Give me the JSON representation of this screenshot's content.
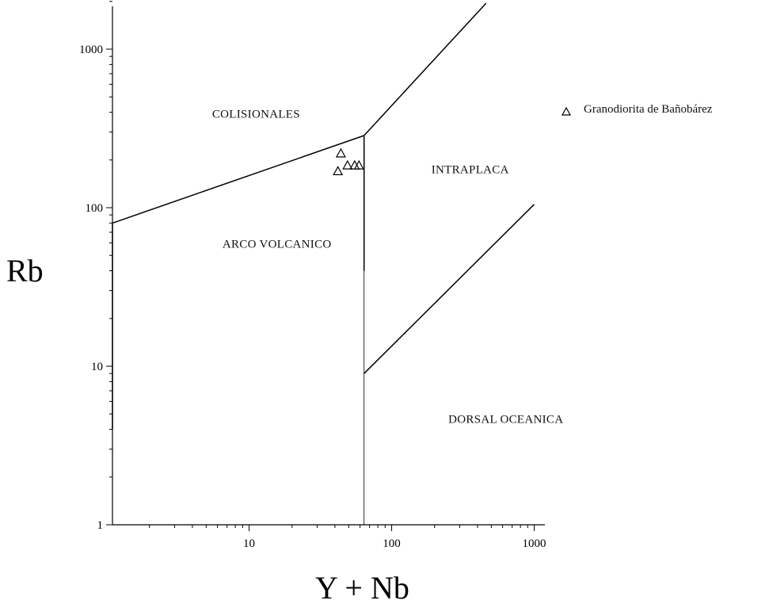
{
  "chart_data": {
    "type": "scatter",
    "xlabel": "Y + Nb",
    "ylabel": "Rb",
    "x_scale": "log",
    "y_scale": "log",
    "xlim": [
      1.1,
      1200
    ],
    "ylim": [
      1,
      2200
    ],
    "x_ticks": [
      {
        "value": 10,
        "label": "10"
      },
      {
        "value": 100,
        "label": "100"
      },
      {
        "value": 1000,
        "label": "1000"
      }
    ],
    "y_ticks": [
      {
        "value": 1,
        "label": "1"
      },
      {
        "value": 10,
        "label": "10"
      },
      {
        "value": 100,
        "label": "100"
      },
      {
        "value": 1000,
        "label": "1000"
      }
    ],
    "fields": [
      {
        "label": "COLISIONALES",
        "x": 5.5,
        "y": 370
      },
      {
        "label": "INTRAPLACA",
        "x": 190,
        "y": 165
      },
      {
        "label": "ARCO VOLCANICO",
        "x": 6.5,
        "y": 56
      },
      {
        "label": "DORSAL OCEANICA",
        "x": 250,
        "y": 4.4
      }
    ],
    "boundaries": [
      {
        "name": "colisionales-arco",
        "points": [
          [
            1.1,
            80
          ],
          [
            64,
            285
          ]
        ],
        "style": "thick"
      },
      {
        "name": "colisionales-intraplaca",
        "points": [
          [
            64,
            285
          ],
          [
            460,
            1950
          ]
        ],
        "style": "thick"
      },
      {
        "name": "intraplaca-arco-upper",
        "points": [
          [
            64,
            285
          ],
          [
            64,
            40
          ]
        ],
        "style": "thick"
      },
      {
        "name": "intraplaca-arco-lower",
        "points": [
          [
            64,
            40
          ],
          [
            64,
            1
          ]
        ],
        "style": "thin"
      },
      {
        "name": "intraplaca-dorsal",
        "points": [
          [
            64,
            9
          ],
          [
            1000,
            105
          ]
        ],
        "style": "thick"
      },
      {
        "name": "left-segment",
        "points": [
          [
            1.1,
            79
          ],
          [
            1.1,
            4
          ]
        ],
        "style": "thick"
      },
      {
        "name": "left-segment-lower",
        "points": [
          [
            1.1,
            4
          ],
          [
            1.1,
            1
          ]
        ],
        "style": "thin"
      }
    ],
    "series": [
      {
        "name": "Granodiorita de Bañobárez",
        "marker": "triangle-open",
        "points": [
          [
            44,
            220
          ],
          [
            42,
            170
          ],
          [
            49,
            185
          ],
          [
            55,
            185
          ],
          [
            59,
            185
          ]
        ]
      }
    ],
    "legend": {
      "position": "top-right",
      "entries": [
        "Granodiorita de Bañobárez"
      ]
    },
    "grid": false
  }
}
